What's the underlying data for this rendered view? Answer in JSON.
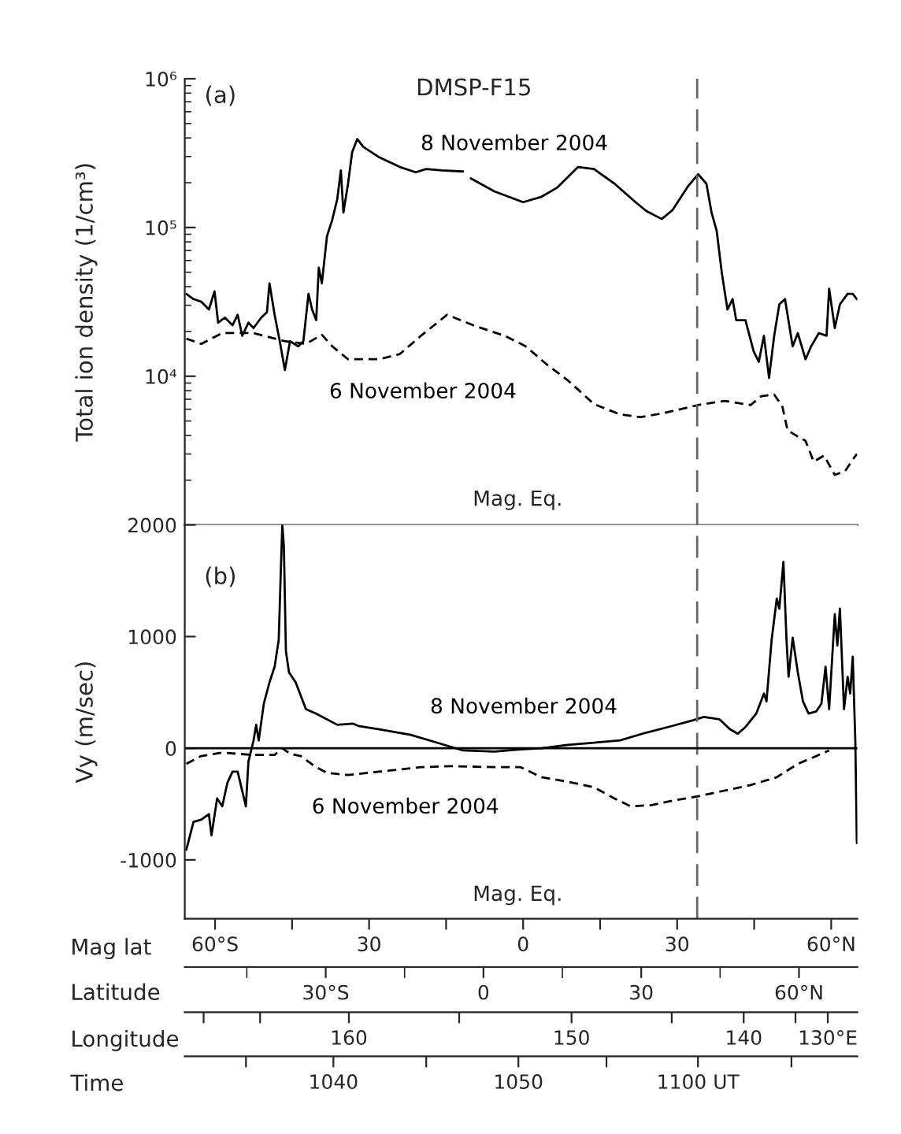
{
  "chart_data": [
    {
      "type": "line",
      "title": "DMSP-F15",
      "ylabel": "Total ion density (1/cm³)",
      "log": "y",
      "grid": false,
      "legend": false,
      "tick_labels": "y",
      "marker": "none",
      "xlim": [
        -65.9,
        65.1
      ],
      "xticks": [
        {
          "value": -60,
          "label": null
        },
        {
          "value": -45,
          "label": null
        },
        {
          "value": -30,
          "label": null
        },
        {
          "value": -15,
          "label": null
        },
        {
          "value": 0,
          "label": null
        },
        {
          "value": 15,
          "label": null
        },
        {
          "value": 30,
          "label": null
        },
        {
          "value": 45,
          "label": null
        },
        {
          "value": 60,
          "label": null
        }
      ],
      "ylim": [
        1000,
        1000000
      ],
      "yticks": [
        {
          "value": 10000,
          "label": "10⁴"
        },
        {
          "value": 100000,
          "label": "10⁵"
        },
        {
          "value": 1000000,
          "label": "10⁶"
        }
      ],
      "annotations": [
        "(a)",
        "Mag. Eq."
      ],
      "ref_lines": [
        {
          "axis": "x",
          "value": 33.9,
          "color": "#666666",
          "line_style": "dashed"
        }
      ],
      "series": [
        {
          "name": "8 November 2004",
          "color": "#000000",
          "line_style": "solid",
          "x": [
            -65.6,
            -64.2,
            -62.7,
            -61.2,
            -60.1,
            -59.4,
            -58.1,
            -56.6,
            -55.6,
            -54.7,
            -53.5,
            -52.5,
            -51.0,
            -49.9,
            -49.4,
            -48.4,
            -47.4,
            -46.4,
            -45.4,
            -43.8,
            -42.8,
            -41.8,
            -41.1,
            -40.3,
            -39.8,
            -39.2,
            -38.2,
            -37.2,
            -36.2,
            -35.5,
            -35.0,
            -34.1,
            -33.3,
            -32.3,
            -31.1,
            -28.0,
            -24.0,
            -20.9,
            -18.9,
            -15.8,
            -11.7,
            -11.0,
            -10.2,
            -5.6,
            0,
            3.6,
            6.6,
            10.7,
            13.8,
            17.8,
            21.9,
            24.0,
            27.0,
            29.1,
            32.1,
            34.1,
            35.7,
            36.7,
            37.7,
            38.7,
            39.8,
            40.8,
            41.5,
            43.3,
            44.9,
            45.9,
            46.9,
            47.9,
            48.9,
            49.9,
            51.0,
            52.0,
            52.5,
            53.5,
            55.0,
            56.1,
            57.6,
            59.1,
            59.6,
            60.7,
            61.7,
            63.2,
            64.2,
            65.0
          ],
          "values": [
            35800,
            33000,
            31700,
            28100,
            37200,
            22900,
            24800,
            22000,
            25900,
            18700,
            22900,
            21100,
            24800,
            26900,
            42100,
            25900,
            17200,
            11000,
            17200,
            15900,
            17200,
            35800,
            28100,
            23800,
            53700,
            42100,
            87500,
            112000,
            155000,
            242000,
            126000,
            197000,
            321000,
            393000,
            348000,
            296000,
            255000,
            235000,
            247000,
            242000,
            238000,
            null,
            214000,
            175000,
            148000,
            161000,
            185000,
            255000,
            247000,
            197000,
            148000,
            129000,
            114000,
            131000,
            189000,
            228000,
            197000,
            126000,
            94800,
            49500,
            28100,
            33000,
            23800,
            23800,
            14700,
            12500,
            18700,
            9750,
            18700,
            30400,
            33000,
            20300,
            15900,
            19500,
            13000,
            15900,
            19500,
            18700,
            38800,
            21100,
            30400,
            35800,
            35800,
            33000
          ]
        },
        {
          "name": "6 November 2004",
          "color": "#000000",
          "line_style": "dashed",
          "x": [
            -65.6,
            -62.7,
            -58.6,
            -52.5,
            -46.4,
            -42.3,
            -39.2,
            -37.2,
            -34.1,
            -28.0,
            -24.0,
            -19.9,
            -14.8,
            -9.7,
            -3.6,
            0.5,
            4.6,
            8.7,
            13.8,
            18.9,
            22.9,
            27.0,
            34.1,
            39.2,
            44.3,
            46.4,
            48.9,
            50.5,
            51.5,
            53.5,
            55.0,
            56.6,
            58.6,
            60.7,
            62.7,
            65.0
          ],
          "values": [
            17900,
            16500,
            19500,
            19500,
            17200,
            16500,
            19000,
            15900,
            13000,
            13000,
            14100,
            18700,
            25900,
            22000,
            18700,
            15900,
            12000,
            9380,
            6500,
            5530,
            5310,
            5620,
            6400,
            6830,
            6400,
            7340,
            7530,
            6240,
            4330,
            3930,
            3680,
            2660,
            2930,
            2170,
            2300,
            3010
          ]
        }
      ]
    },
    {
      "type": "line",
      "ylabel": "Vy (m/sec)",
      "xlabel": "Mag lat",
      "grid": false,
      "legend": false,
      "marker": "none",
      "xlim": [
        -65.9,
        65.1
      ],
      "xticks": [
        {
          "value": -60,
          "label": "60°S"
        },
        {
          "value": -45,
          "label": null
        },
        {
          "value": -30,
          "label": "30"
        },
        {
          "value": -15,
          "label": null
        },
        0,
        {
          "value": 15,
          "label": null
        },
        30,
        {
          "value": 45,
          "label": null
        },
        {
          "value": 60,
          "label": "60°N"
        }
      ],
      "ylim": [
        -1527,
        2000
      ],
      "yticks": [
        -1000,
        0,
        1000,
        2000
      ],
      "x2label": "Latitude",
      "x2lim": [
        -56.8,
        71.1
      ],
      "x2ticks": [
        {
          "value": -30,
          "label": "30°S"
        },
        0,
        30,
        {
          "value": 60,
          "label": "60°N"
        }
      ],
      "annotations": [
        "(b)",
        "Mag. Eq."
      ],
      "ref_lines": [
        {
          "axis": "x",
          "value": 33.9,
          "color": "#666666",
          "line_style": "dashed"
        },
        {
          "axis": "y",
          "value": 0,
          "color": "#000000",
          "line_style": "solid"
        }
      ],
      "series": [
        {
          "name": "8 November 2004",
          "color": "#000000",
          "line_style": "solid",
          "x": [
            -65.6,
            -64.2,
            -62.7,
            -61.2,
            -60.7,
            -59.6,
            -58.6,
            -57.6,
            -56.6,
            -55.6,
            -54.0,
            -53.5,
            -52.5,
            -52.0,
            -51.5,
            -50.5,
            -49.4,
            -48.4,
            -47.6,
            -47.2,
            -46.9,
            -46.6,
            -46.2,
            -45.6,
            -44.3,
            -42.3,
            -40.3,
            -36.2,
            -33.1,
            -32.1,
            -28.0,
            -21.9,
            -16.8,
            -11.7,
            -5.6,
            -0.5,
            3.6,
            8.7,
            13.8,
            18.9,
            24.0,
            29.1,
            33.1,
            35.2,
            38.2,
            40.3,
            41.8,
            43.3,
            45.4,
            46.9,
            47.4,
            48.4,
            49.4,
            49.9,
            50.7,
            51.3,
            51.7,
            52.5,
            53.5,
            54.5,
            55.6,
            57.1,
            58.1,
            58.9,
            59.6,
            60.7,
            61.2,
            61.7,
            62.5,
            63.2,
            63.7,
            64.2,
            64.7,
            65.0
          ],
          "values": [
            -910,
            -660,
            -640,
            -590,
            -780,
            -450,
            -520,
            -310,
            -210,
            -210,
            -520,
            -120,
            70,
            210,
            70,
            400,
            590,
            730,
            970,
            1580,
            2000,
            1810,
            870,
            680,
            590,
            350,
            310,
            210,
            220,
            200,
            170,
            120,
            50,
            -20,
            -30,
            -10,
            0,
            30,
            50,
            70,
            140,
            200,
            250,
            280,
            260,
            170,
            130,
            190,
            310,
            490,
            420,
            970,
            1340,
            1250,
            1670,
            970,
            640,
            990,
            680,
            420,
            310,
            330,
            400,
            730,
            350,
            1200,
            920,
            1250,
            350,
            640,
            490,
            820,
            70,
            -850
          ]
        },
        {
          "name": "6 November 2004",
          "color": "#000000",
          "line_style": "dashed",
          "x": [
            -65.6,
            -62.7,
            -58.6,
            -52.5,
            -48.4,
            -46.9,
            -45.4,
            -43.3,
            -40.3,
            -38.2,
            -34.1,
            -30.1,
            -26.0,
            -19.9,
            -13.8,
            -5.6,
            -0.5,
            3.6,
            8.7,
            13.8,
            17.8,
            20.9,
            25.0,
            29.1,
            34.1,
            39.2,
            44.3,
            49.4,
            53.5,
            56.6,
            59.6
          ],
          "values": [
            -140,
            -70,
            -40,
            -60,
            -60,
            0,
            -50,
            -70,
            -170,
            -220,
            -240,
            -220,
            -200,
            -170,
            -160,
            -170,
            -170,
            -260,
            -300,
            -350,
            -450,
            -520,
            -510,
            -470,
            -430,
            -380,
            -330,
            -260,
            -140,
            -80,
            -20
          ]
        }
      ]
    },
    {
      "type": "other",
      "annotations": [
        "Longitude",
        "160",
        "150",
        "140",
        "130°E"
      ]
    },
    {
      "type": "other",
      "annotations": [
        "Time",
        "1040",
        "1050",
        "1100 UT"
      ]
    }
  ]
}
